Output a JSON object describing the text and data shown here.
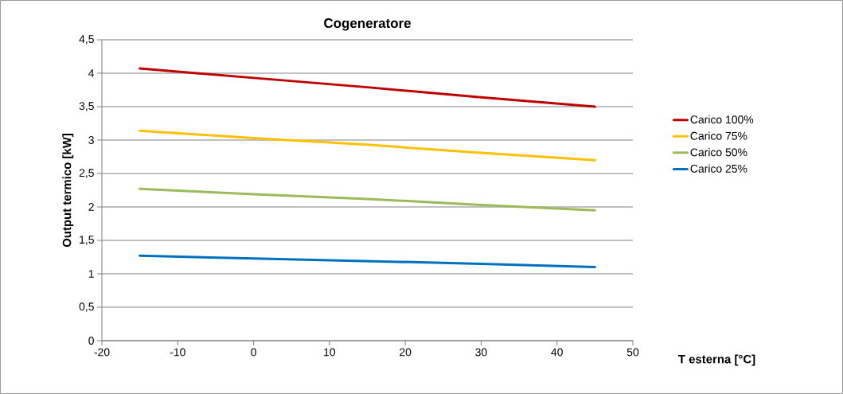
{
  "chart_data": {
    "type": "line",
    "title": "Cogeneratore",
    "xlabel": "T esterna [°C]",
    "ylabel": "Output termico [kW]",
    "x": [
      -15,
      0,
      15,
      30,
      45
    ],
    "series": [
      {
        "name": "Carico 100%",
        "color": "#c00000",
        "values": [
          4.07,
          3.93,
          3.79,
          3.64,
          3.5
        ]
      },
      {
        "name": "Carico 75%",
        "color": "#ffc000",
        "values": [
          3.14,
          3.03,
          2.93,
          2.81,
          2.7
        ]
      },
      {
        "name": "Carico 50%",
        "color": "#9bbb59",
        "values": [
          2.27,
          2.19,
          2.12,
          2.03,
          1.95
        ]
      },
      {
        "name": "Carico 25%",
        "color": "#0070c0",
        "values": [
          1.27,
          1.23,
          1.19,
          1.15,
          1.1
        ]
      }
    ],
    "xlim": [
      -20,
      50
    ],
    "xticks": [
      -20,
      -10,
      0,
      10,
      20,
      30,
      40,
      50
    ],
    "ylim": [
      0,
      4.5
    ],
    "yticks": [
      0,
      {
        "value": 0.5,
        "label": "0,5"
      },
      1,
      {
        "value": 1.5,
        "label": "1,5"
      },
      2,
      {
        "value": 2.5,
        "label": "2,5"
      },
      3,
      {
        "value": 3.5,
        "label": "3,5"
      },
      4,
      {
        "value": 4.5,
        "label": "4,5"
      }
    ],
    "grid": "y",
    "legend": "right",
    "marker": "none",
    "line_style": "solid"
  }
}
